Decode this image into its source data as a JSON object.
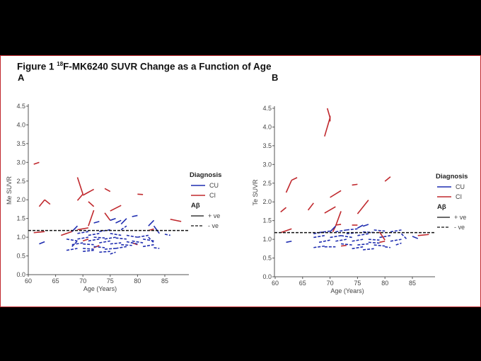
{
  "figure": {
    "title_prefix": "Figure 1 ",
    "title_sup": "18",
    "title_rest": "F-MK6240 SUVR Change as a Function of Age",
    "panel_a": "A",
    "panel_b": "B"
  },
  "colors": {
    "CU": "#1f2db0",
    "CI": "#c0282d",
    "threshold": "#111111",
    "border": "#c0282d"
  },
  "chart_data": [
    {
      "type": "line",
      "panel": "A",
      "xlabel": "Age (Years)",
      "ylabel": "Me SUVR",
      "xlim": [
        59.5,
        89.5
      ],
      "ylim": [
        0,
        4.5
      ],
      "xticks": [
        60,
        65,
        70,
        75,
        80,
        85
      ],
      "yticks": [
        "0.0",
        "0.5",
        "1.0",
        "1.5",
        "2.0",
        "2.5",
        "3.0",
        "3.5",
        "4.0",
        "4.5"
      ],
      "threshold": 1.18,
      "grid": false,
      "legend": {
        "placement": "right",
        "diagnosis_title": "Diagnosis",
        "diagnosis": [
          "CU",
          "CI"
        ],
        "abeta_title": "Aβ",
        "abeta": [
          "+ ve",
          "- ve"
        ]
      },
      "series": [
        {
          "name": "CI",
          "style": "solid",
          "segments": [
            [
              61,
              2.95,
              62,
              3.0
            ],
            [
              62,
              1.82,
              63,
              2.0
            ],
            [
              63,
              2.0,
              64,
              1.88
            ],
            [
              69,
              2.6,
              70,
              2.15
            ],
            [
              69,
              1.98,
              70,
              2.15
            ],
            [
              70,
              2.12,
              72,
              2.28
            ],
            [
              71,
              1.95,
              72,
              1.82
            ],
            [
              74,
              2.3,
              75,
              2.22
            ],
            [
              75,
              1.7,
              77,
              1.85
            ],
            [
              74,
              1.65,
              75,
              1.45
            ],
            [
              71,
              1.3,
              72,
              1.72
            ],
            [
              80,
              2.15,
              81,
              2.14
            ],
            [
              86,
              1.48,
              88,
              1.42
            ],
            [
              66,
              1.05,
              68,
              1.15
            ],
            [
              69,
              1.2,
              71,
              1.25
            ],
            [
              61,
              1.12,
              63,
              1.15
            ],
            [
              70,
              0.9,
              71,
              0.95
            ],
            [
              72,
              0.72,
              73,
              0.78
            ],
            [
              79,
              0.85,
              80,
              0.8
            ],
            [
              82,
              1.18,
              83,
              1.22
            ]
          ]
        },
        {
          "name": "CU",
          "style": "solid",
          "segments": [
            [
              75,
              1.45,
              76,
              1.5
            ],
            [
              77,
              1.35,
              78,
              1.5
            ],
            [
              79,
              1.55,
              80,
              1.58
            ],
            [
              82,
              1.3,
              83,
              1.45
            ],
            [
              68,
              1.15,
              69,
              1.3
            ],
            [
              72,
              1.38,
              73,
              1.42
            ],
            [
              76,
              1.38,
              77,
              1.45
            ],
            [
              83,
              1.3,
              84,
              1.1
            ],
            [
              62,
              0.82,
              63,
              0.88
            ]
          ]
        },
        {
          "name": "CU",
          "style": "dashed",
          "segments": [
            [
              67,
              0.95,
              69,
              0.9
            ],
            [
              67,
              0.65,
              69,
              0.7
            ],
            [
              68,
              0.8,
              70,
              0.85
            ],
            [
              68,
              0.75,
              69,
              0.9
            ],
            [
              69,
              0.95,
              71,
              1.0
            ],
            [
              70,
              0.7,
              72,
              0.68
            ],
            [
              70,
              0.82,
              72,
              0.8
            ],
            [
              71,
              1.05,
              73,
              1.1
            ],
            [
              71,
              0.9,
              73,
              0.95
            ],
            [
              72,
              0.75,
              74,
              0.72
            ],
            [
              72,
              1.0,
              74,
              0.98
            ],
            [
              73,
              0.85,
              75,
              0.9
            ],
            [
              73,
              1.15,
              75,
              1.2
            ],
            [
              74,
              0.68,
              76,
              0.7
            ],
            [
              74,
              0.95,
              76,
              1.0
            ],
            [
              75,
              0.55,
              76,
              0.6
            ],
            [
              75,
              0.82,
              77,
              0.85
            ],
            [
              75,
              1.1,
              77,
              1.05
            ],
            [
              76,
              0.7,
              78,
              0.75
            ],
            [
              76,
              0.98,
              78,
              0.95
            ],
            [
              77,
              1.2,
              78,
              1.3
            ],
            [
              77,
              0.8,
              79,
              0.78
            ],
            [
              78,
              1.05,
              80,
              1.0
            ],
            [
              79,
              0.9,
              81,
              0.85
            ],
            [
              80,
              1.0,
              82,
              1.05
            ],
            [
              81,
              0.95,
              83,
              0.9
            ],
            [
              81,
              0.75,
              83,
              0.8
            ],
            [
              82,
              1.0,
              83,
              0.85
            ],
            [
              83,
              0.72,
              84,
              0.7
            ],
            [
              85,
              1.08,
              86,
              1.05
            ],
            [
              69,
              1.1,
              71,
              1.15
            ],
            [
              73,
              0.6,
              75,
              0.62
            ],
            [
              78,
              0.88,
              80,
              0.82
            ],
            [
              70,
              0.62,
              72,
              0.65
            ]
          ]
        }
      ]
    },
    {
      "type": "line",
      "panel": "B",
      "xlabel": "Age (Years)",
      "ylabel": "Te SUVR",
      "xlim": [
        59.5,
        89.5
      ],
      "ylim": [
        0,
        4.5
      ],
      "xticks": [
        60,
        65,
        70,
        75,
        80,
        85
      ],
      "yticks": [
        "0.0",
        "0.5",
        "1.0",
        "1.5",
        "2.0",
        "2.5",
        "3.0",
        "3.5",
        "4.0",
        "4.5"
      ],
      "threshold": 1.18,
      "grid": false,
      "legend": {
        "placement": "right",
        "diagnosis_title": "Diagnosis",
        "diagnosis": [
          "CU",
          "CI"
        ],
        "abeta_title": "Aβ",
        "abeta": [
          "+ ve",
          "- ve"
        ]
      },
      "series": [
        {
          "name": "CI",
          "style": "solid",
          "segments": [
            [
              69.5,
              4.5,
              70,
              4.25
            ],
            [
              70,
              4.3,
              70,
              4.15
            ],
            [
              69,
              3.75,
              70,
              4.25
            ],
            [
              62,
              2.25,
              63,
              2.58
            ],
            [
              63,
              2.58,
              64,
              2.65
            ],
            [
              61,
              1.73,
              62,
              1.85
            ],
            [
              66,
              1.78,
              67,
              1.97
            ],
            [
              70,
              2.12,
              72,
              2.3
            ],
            [
              69,
              1.7,
              71,
              1.87
            ],
            [
              71,
              1.35,
              72,
              1.75
            ],
            [
              70.5,
              1.2,
              71,
              1.35
            ],
            [
              74,
              2.45,
              75,
              2.47
            ],
            [
              75,
              1.68,
              77,
              2.05
            ],
            [
              80,
              2.55,
              81,
              2.67
            ],
            [
              61,
              1.18,
              63,
              1.28
            ],
            [
              72,
              0.82,
              73,
              0.84
            ],
            [
              86,
              1.1,
              88,
              1.13
            ],
            [
              79,
              1.2,
              80,
              0.98
            ],
            [
              79,
              0.92,
              80,
              0.95
            ],
            [
              71,
              1.38,
              72,
              1.4
            ],
            [
              74,
              1.38,
              75,
              1.38
            ]
          ]
        },
        {
          "name": "CU",
          "style": "solid",
          "segments": [
            [
              75,
              1.3,
              76,
              1.38
            ],
            [
              76,
              1.35,
              77,
              1.4
            ],
            [
              70,
              1.2,
              71,
              1.35
            ],
            [
              62,
              0.92,
              63,
              0.95
            ],
            [
              85,
              1.08,
              86,
              1.02
            ]
          ]
        },
        {
          "name": "CU",
          "style": "dashed",
          "segments": [
            [
              67,
              0.78,
              69,
              0.82
            ],
            [
              67,
              1.05,
              69,
              1.1
            ],
            [
              67,
              1.15,
              69,
              1.2
            ],
            [
              68,
              0.92,
              70,
              0.98
            ],
            [
              69,
              0.8,
              71,
              0.8
            ],
            [
              70,
              1.05,
              72,
              1.1
            ],
            [
              71,
              0.95,
              73,
              1.0
            ],
            [
              71,
              1.2,
              73,
              1.25
            ],
            [
              72,
              1.1,
              74,
              1.05
            ],
            [
              72,
              0.88,
              74,
              0.85
            ],
            [
              73,
              1.25,
              75,
              1.28
            ],
            [
              74,
              0.95,
              76,
              1.0
            ],
            [
              74,
              0.75,
              76,
              0.8
            ],
            [
              75,
              1.1,
              77,
              1.15
            ],
            [
              75,
              0.85,
              77,
              0.88
            ],
            [
              76,
              0.72,
              78,
              0.75
            ],
            [
              76,
              1.2,
              78,
              1.18
            ],
            [
              77,
              1.0,
              79,
              0.98
            ],
            [
              78,
              1.25,
              80,
              1.22
            ],
            [
              78,
              0.85,
              80,
              0.82
            ],
            [
              79,
              1.05,
              81,
              1.1
            ],
            [
              80,
              0.8,
              81,
              0.78
            ],
            [
              81,
              1.2,
              83,
              1.25
            ],
            [
              81,
              0.95,
              83,
              1.0
            ],
            [
              82,
              0.85,
              83,
              0.9
            ],
            [
              83,
              1.15,
              84,
              1.0
            ],
            [
              68,
              1.18,
              70,
              1.22
            ],
            [
              73,
              1.15,
              75,
              1.18
            ],
            [
              77,
              0.92,
              79,
              0.9
            ]
          ]
        }
      ]
    }
  ]
}
